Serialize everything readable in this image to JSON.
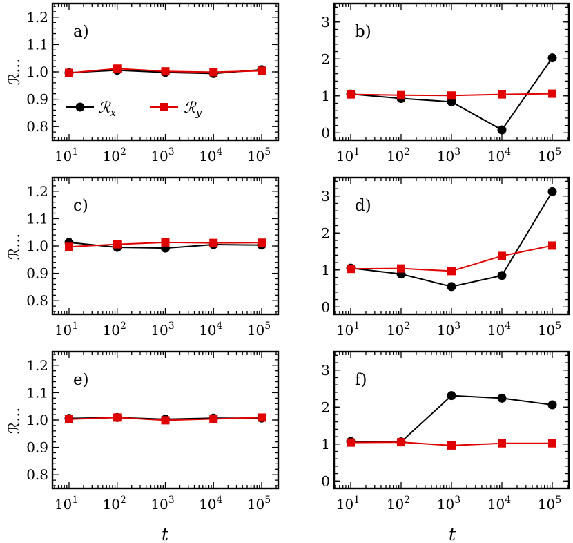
{
  "figure": {
    "xlabel": "t",
    "ylabel": "ℛ...",
    "legend": {
      "placement": "lower-left of panel a",
      "entries": [
        {
          "main": "ℛ",
          "sub": "x",
          "color": "#000000",
          "marker": "circle"
        },
        {
          "main": "ℛ",
          "sub": "y",
          "color": "#e00000",
          "marker": "square"
        }
      ]
    },
    "colors": {
      "rx": "#000000",
      "ry": "#e00000"
    }
  },
  "chart_data": [
    {
      "type": "line",
      "panel": "a)",
      "xscale": "log",
      "x": [
        10,
        100,
        1000,
        10000,
        100000
      ],
      "xtick_labels": [
        "10^1",
        "10^2",
        "10^3",
        "10^4",
        "10^5"
      ],
      "ylim": [
        0.75,
        1.25
      ],
      "yticks": [
        0.8,
        0.9,
        1.0,
        1.1,
        1.2
      ],
      "ytick_labels": [
        "0.8",
        "0.9",
        "1.0",
        "1.1",
        "1.2"
      ],
      "series": [
        {
          "name": "ℛ_x",
          "values": [
            0.997,
            1.006,
            0.998,
            0.994,
            1.008
          ]
        },
        {
          "name": "ℛ_y",
          "values": [
            0.996,
            1.012,
            1.002,
            0.999,
            1.004
          ]
        }
      ]
    },
    {
      "type": "line",
      "panel": "b)",
      "xscale": "log",
      "x": [
        10,
        100,
        1000,
        10000,
        100000
      ],
      "xtick_labels": [
        "10^1",
        "10^2",
        "10^3",
        "10^4",
        "10^5"
      ],
      "ylim": [
        -0.2,
        3.5
      ],
      "yticks": [
        0,
        1,
        2,
        3
      ],
      "ytick_labels": [
        "0",
        "1",
        "2",
        "3"
      ],
      "series": [
        {
          "name": "ℛ_x",
          "values": [
            1.05,
            0.93,
            0.84,
            0.08,
            2.03
          ]
        },
        {
          "name": "ℛ_y",
          "values": [
            1.04,
            1.02,
            1.01,
            1.04,
            1.06
          ]
        }
      ]
    },
    {
      "type": "line",
      "panel": "c)",
      "xscale": "log",
      "x": [
        10,
        100,
        1000,
        10000,
        100000
      ],
      "xtick_labels": [
        "10^1",
        "10^2",
        "10^3",
        "10^4",
        "10^5"
      ],
      "ylim": [
        0.75,
        1.25
      ],
      "yticks": [
        0.8,
        0.9,
        1.0,
        1.1,
        1.2
      ],
      "ytick_labels": [
        "0.8",
        "0.9",
        "1.0",
        "1.1",
        "1.2"
      ],
      "series": [
        {
          "name": "ℛ_x",
          "values": [
            1.013,
            0.995,
            0.992,
            1.005,
            1.003
          ]
        },
        {
          "name": "ℛ_y",
          "values": [
            0.997,
            1.006,
            1.013,
            1.011,
            1.012
          ]
        }
      ]
    },
    {
      "type": "line",
      "panel": "d)",
      "xscale": "log",
      "x": [
        10,
        100,
        1000,
        10000,
        100000
      ],
      "xtick_labels": [
        "10^1",
        "10^2",
        "10^3",
        "10^4",
        "10^5"
      ],
      "ylim": [
        -0.2,
        3.5
      ],
      "yticks": [
        0,
        1,
        2,
        3
      ],
      "ytick_labels": [
        "0",
        "1",
        "2",
        "3"
      ],
      "series": [
        {
          "name": "ℛ_x",
          "values": [
            1.05,
            0.89,
            0.55,
            0.85,
            3.12
          ]
        },
        {
          "name": "ℛ_y",
          "values": [
            1.03,
            1.04,
            0.97,
            1.38,
            1.66
          ]
        }
      ]
    },
    {
      "type": "line",
      "panel": "e)",
      "xscale": "log",
      "x": [
        10,
        100,
        1000,
        10000,
        100000
      ],
      "xtick_labels": [
        "10^1",
        "10^2",
        "10^3",
        "10^4",
        "10^5"
      ],
      "ylim": [
        0.75,
        1.25
      ],
      "yticks": [
        0.8,
        0.9,
        1.0,
        1.1,
        1.2
      ],
      "ytick_labels": [
        "0.8",
        "0.9",
        "1.0",
        "1.1",
        "1.2"
      ],
      "series": [
        {
          "name": "ℛ_x",
          "values": [
            1.006,
            1.009,
            1.003,
            1.007,
            1.007
          ]
        },
        {
          "name": "ℛ_y",
          "values": [
            1.003,
            1.009,
            0.999,
            1.004,
            1.009
          ]
        }
      ]
    },
    {
      "type": "line",
      "panel": "f)",
      "xscale": "log",
      "x": [
        10,
        100,
        1000,
        10000,
        100000
      ],
      "xtick_labels": [
        "10^1",
        "10^2",
        "10^3",
        "10^4",
        "10^5"
      ],
      "ylim": [
        -0.2,
        3.5
      ],
      "yticks": [
        0,
        1,
        2,
        3
      ],
      "ytick_labels": [
        "0",
        "1",
        "2",
        "3"
      ],
      "series": [
        {
          "name": "ℛ_x",
          "values": [
            1.07,
            1.06,
            2.31,
            2.24,
            2.06
          ]
        },
        {
          "name": "ℛ_y",
          "values": [
            1.04,
            1.05,
            0.96,
            1.02,
            1.02
          ]
        }
      ]
    }
  ]
}
